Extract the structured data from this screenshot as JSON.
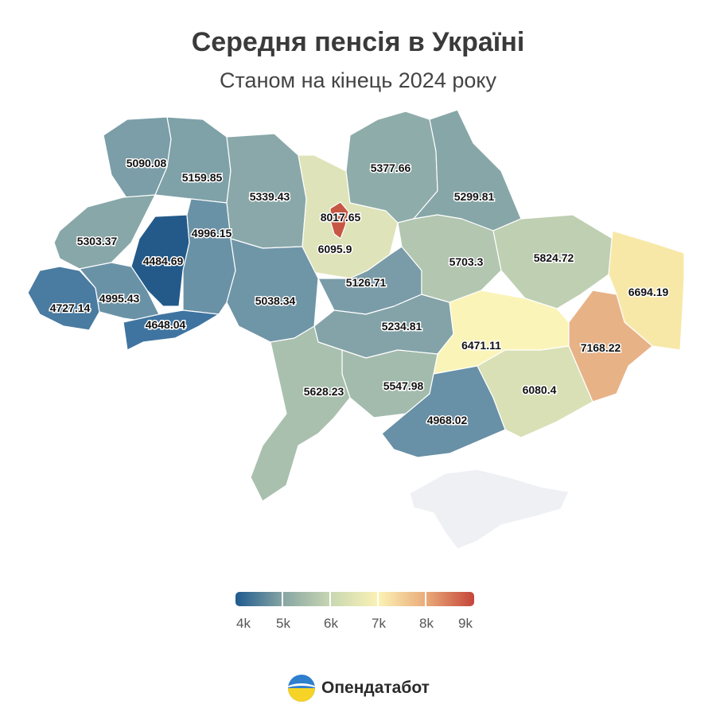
{
  "title": "Середня пенсія в Україні",
  "subtitle": "Станом на кінець 2024 року",
  "legend": {
    "ticks": [
      "4k",
      "5k",
      "6k",
      "7k",
      "8k",
      "9k"
    ],
    "colors": [
      "#1f5b8f",
      "#87a5a3",
      "#c9d7b2",
      "#fbf2b5",
      "#e9aa78",
      "#c4453a"
    ]
  },
  "regions": [
    {
      "name": "Volyn",
      "value": "5090.08",
      "color": "#7b9ea8"
    },
    {
      "name": "Rivne",
      "value": "5159.85",
      "color": "#7fa1a8"
    },
    {
      "name": "Zhytomyr",
      "value": "5339.43",
      "color": "#8aa8a9"
    },
    {
      "name": "Kyiv Oblast",
      "value": "6095.9",
      "color": "#dfe3b9"
    },
    {
      "name": "Kyiv",
      "value": "8017.65",
      "color": "#c75642"
    },
    {
      "name": "Chernihiv",
      "value": "5377.66",
      "color": "#8eacaa"
    },
    {
      "name": "Sumy",
      "value": "5299.81",
      "color": "#87a6a8"
    },
    {
      "name": "Lviv",
      "value": "5303.37",
      "color": "#88a7a8"
    },
    {
      "name": "Ternopil",
      "value": "4484.69",
      "color": "#235a8a"
    },
    {
      "name": "Khmelnytskyi",
      "value": "4996.15",
      "color": "#6a92a6"
    },
    {
      "name": "Zakarpattia",
      "value": "4727.14",
      "color": "#4a7ba0"
    },
    {
      "name": "Ivano-Frankivsk",
      "value": "4995.43",
      "color": "#6a92a6"
    },
    {
      "name": "Chernivtsi",
      "value": "4648.04",
      "color": "#3f74a0"
    },
    {
      "name": "Vinnytsia",
      "value": "5038.34",
      "color": "#6f96a7"
    },
    {
      "name": "Cherkasy",
      "value": "5126.71",
      "color": "#7a9ca8"
    },
    {
      "name": "Kirovohrad",
      "value": "5234.81",
      "color": "#83a3a8"
    },
    {
      "name": "Poltava",
      "value": "5703.3",
      "color": "#b2c6b0"
    },
    {
      "name": "Kharkiv",
      "value": "5824.72",
      "color": "#bfcfb2"
    },
    {
      "name": "Luhansk",
      "value": "6694.19",
      "color": "#f8e8a8"
    },
    {
      "name": "Dnipropetrovsk",
      "value": "6471.11",
      "color": "#fbf4b8"
    },
    {
      "name": "Donetsk",
      "value": "7168.22",
      "color": "#e8b287"
    },
    {
      "name": "Zaporizhzhia",
      "value": "6080.4",
      "color": "#d9e0b6"
    },
    {
      "name": "Mykolaiv",
      "value": "5547.98",
      "color": "#a3bbac"
    },
    {
      "name": "Odesa",
      "value": "5628.23",
      "color": "#aac0ae"
    },
    {
      "name": "Kherson",
      "value": "4968.02",
      "color": "#6890a6"
    },
    {
      "name": "Crimea",
      "value": "",
      "color": "#eef0f4"
    }
  ],
  "brand": {
    "name": "Опендатабот"
  }
}
